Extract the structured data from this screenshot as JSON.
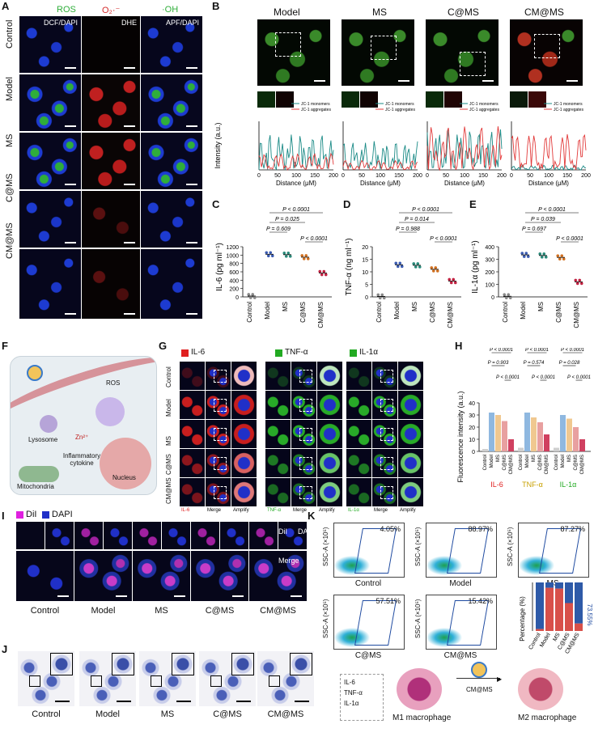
{
  "panels": {
    "A": "A",
    "B": "B",
    "C": "C",
    "D": "D",
    "E": "E",
    "F": "F",
    "G": "G",
    "H": "H",
    "I": "I",
    "J": "J",
    "K": "K"
  },
  "groups": [
    "Control",
    "Model",
    "MS",
    "C@MS",
    "CM@MS"
  ],
  "panelA": {
    "col_headers": [
      "ROS",
      "O₂·⁻",
      "·OH"
    ],
    "probes": [
      "DCF/DAPI",
      "DHE",
      "APF/DAPI"
    ],
    "colors": {
      "ros": "#2fae3a",
      "o2": "#d42a2a",
      "oh": "#2fae3a"
    }
  },
  "panelB": {
    "headers": [
      "Model",
      "MS",
      "C@MS",
      "CM@MS"
    ],
    "legend_monomers": "JC-1 monomers",
    "legend_aggregates": "JC-1 aggregates",
    "ylabel": "Intensity (a.u.)",
    "xlabel": "Distance (μM)",
    "xticks": [
      "0",
      "50",
      "100",
      "150",
      "200"
    ],
    "colors": {
      "monomers": "#1a8a86",
      "aggregates": "#e23a3a"
    }
  },
  "panelC": {
    "ylabel": "IL-6 (pg ml⁻¹)",
    "yticks": [
      "0",
      "200",
      "400",
      "600",
      "800",
      "1000",
      "1200"
    ],
    "pvals": [
      "P < 0.0001",
      "P = 0.025",
      "P = 0.609",
      "P < 0.0001"
    ]
  },
  "panelD": {
    "ylabel": "TNF-α (ng ml⁻¹)",
    "yticks": [
      "0",
      "5",
      "10",
      "15",
      "20"
    ],
    "pvals": [
      "P < 0.0001",
      "P = 0.014",
      "P = 0.988",
      "P < 0.0001"
    ]
  },
  "panelE": {
    "ylabel": "IL-1α (pg ml⁻¹)",
    "yticks": [
      "0",
      "100",
      "200",
      "300",
      "400"
    ],
    "pvals": [
      "P < 0.0001",
      "P = 0.039",
      "P = 0.697",
      "P < 0.0001"
    ]
  },
  "panelF": {
    "labels": [
      "ROS",
      "Zn²⁺",
      "Lysosome",
      "Inflammatory cytokine",
      "Nucleus",
      "Mitochondria"
    ]
  },
  "panelG": {
    "markers": [
      "IL-6",
      "TNF-α",
      "IL-1α"
    ],
    "marker_colors": [
      "#e02020",
      "#22aa22",
      "#22aa22"
    ],
    "row_labels": [
      "Control",
      "Model",
      "MS",
      "C@MS",
      "CM@MS"
    ],
    "bottom_labels": [
      [
        "IL-6",
        "Merge",
        "Amplify"
      ],
      [
        "TNF-α",
        "Merge",
        "Amplify"
      ],
      [
        "IL-1α",
        "Merge",
        "Amplify"
      ]
    ]
  },
  "panelH": {
    "ylabel": "Fluorescence intensity (a.u.)",
    "yticks": [
      "0",
      "10",
      "20",
      "30",
      "40"
    ],
    "group_labels": [
      "IL-6",
      "TNF-α",
      "IL-1α"
    ],
    "group_colors": [
      "#e02020",
      "#c8a000",
      "#22aa22"
    ],
    "pvals": [
      [
        "P < 0.0001",
        "P = 0.903",
        "P < 0.0001"
      ],
      [
        "P < 0.0001",
        "P = 0.574",
        "P < 0.0001"
      ],
      [
        "P < 0.0001",
        "P = 0.028",
        "P < 0.0001"
      ]
    ]
  },
  "panelI": {
    "legend_dil": "DiI",
    "legend_dapi": "DAPI",
    "top_right_dil": "DiI",
    "top_right_dapi": "DAPI",
    "merge": "Merge"
  },
  "panelK": {
    "ylabel": "SSC-A (×10⁵)",
    "plots": [
      {
        "pct": "4.05%",
        "label": "Control"
      },
      {
        "pct": "88.97%",
        "label": "Model"
      },
      {
        "pct": "87.27%",
        "label": "MS"
      },
      {
        "pct": "57.51%",
        "label": "C@MS"
      },
      {
        "pct": "15.42%",
        "label": "CM@MS"
      }
    ],
    "bar_ylabel": "Percentage (%)",
    "bar_annotation": "73.55%",
    "bar_categories": [
      "Control",
      "Model",
      "MS",
      "C@MS",
      "CM@MS"
    ],
    "schematic": {
      "cytokines": [
        "IL-6",
        "TNF-α",
        "IL-1α"
      ],
      "agent": "CM@MS",
      "m1": "M1 macrophage",
      "m2": "M2 macrophage"
    }
  },
  "chart_data": [
    {
      "type": "scatter",
      "panel": "C",
      "ylabel": "IL-6 (pg ml⁻¹)",
      "categories": [
        "Control",
        "Model",
        "MS",
        "C@MS",
        "CM@MS"
      ],
      "values": [
        20,
        1020,
        1010,
        950,
        570
      ],
      "ylim": [
        0,
        1200
      ]
    },
    {
      "type": "scatter",
      "panel": "D",
      "ylabel": "TNF-α (ng ml⁻¹)",
      "categories": [
        "Control",
        "Model",
        "MS",
        "C@MS",
        "CM@MS"
      ],
      "values": [
        0.2,
        12.8,
        12.6,
        11.0,
        6.3
      ],
      "ylim": [
        0,
        20
      ]
    },
    {
      "type": "scatter",
      "panel": "E",
      "ylabel": "IL-1α (pg ml⁻¹)",
      "categories": [
        "Control",
        "Model",
        "MS",
        "C@MS",
        "CM@MS"
      ],
      "values": [
        5,
        335,
        330,
        315,
        120
      ],
      "ylim": [
        0,
        400
      ]
    },
    {
      "type": "bar",
      "panel": "H",
      "ylabel": "Fluorescence intensity (a.u.)",
      "categories": [
        "Control",
        "Model",
        "MS",
        "C@MS",
        "CM@MS"
      ],
      "series": [
        {
          "name": "IL-6",
          "values": [
            2,
            32,
            30,
            25,
            10
          ]
        },
        {
          "name": "TNF-α",
          "values": [
            3,
            32,
            28,
            24,
            14
          ]
        },
        {
          "name": "IL-1α",
          "values": [
            3,
            30,
            27,
            20,
            10
          ]
        }
      ],
      "ylim": [
        0,
        40
      ]
    },
    {
      "type": "bar",
      "panel": "K",
      "ylabel": "Percentage (%)",
      "categories": [
        "Control",
        "Model",
        "MS",
        "C@MS",
        "CM@MS"
      ],
      "series": [
        {
          "name": "positive",
          "values": [
            4.05,
            88.97,
            87.27,
            57.51,
            15.42
          ]
        }
      ],
      "ylim": [
        0,
        100
      ]
    }
  ]
}
